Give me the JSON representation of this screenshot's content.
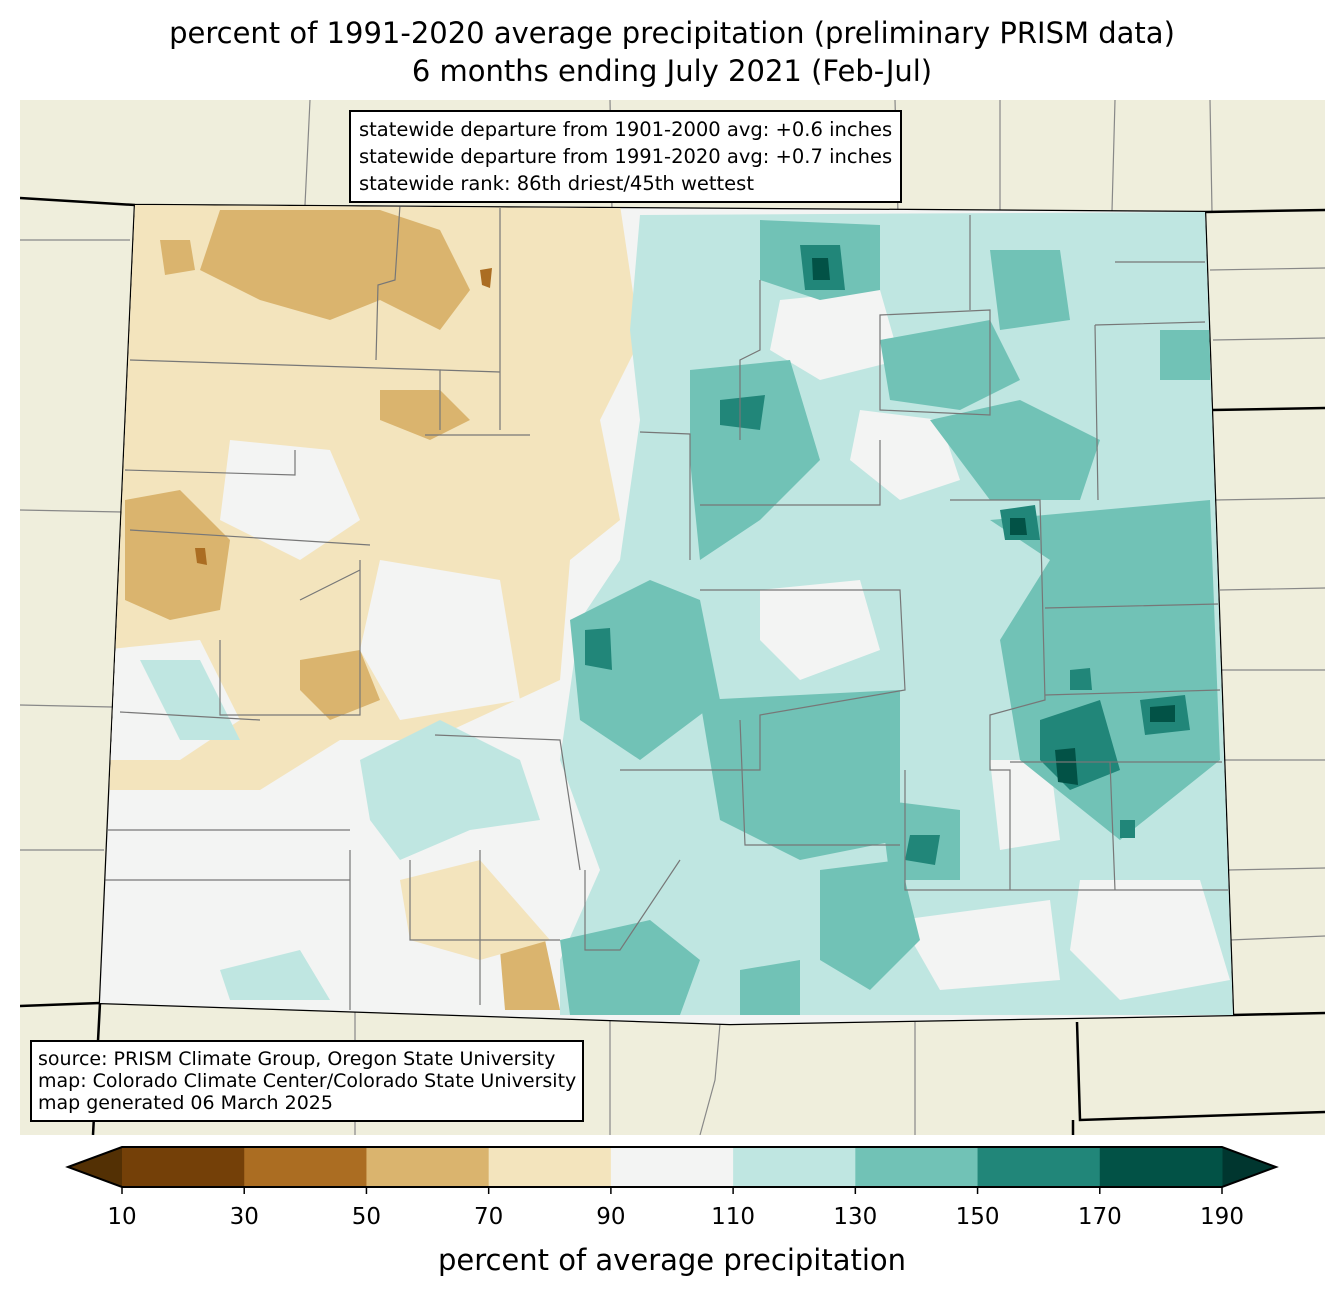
{
  "title": {
    "line1": "percent of 1991-2020 average precipitation (preliminary PRISM data)",
    "line2": "6 months ending July 2021 (Feb-Jul)"
  },
  "stats_box": {
    "line1": "statewide departure from 1901-2000 avg: +0.6 inches",
    "line2": "statewide departure from 1991-2020 avg: +0.7 inches",
    "line3": "statewide rank: 86th driest/45th wettest"
  },
  "source_box": {
    "line1": "source: PRISM Climate Group, Oregon State University",
    "line2": "map: Colorado Climate Center/Colorado State University",
    "line3": "map generated 06 March 2025"
  },
  "colorbar": {
    "label": "percent of average precipitation",
    "ticks": [
      "10",
      "30",
      "50",
      "70",
      "90",
      "110",
      "130",
      "150",
      "170",
      "190"
    ],
    "colors": [
      "#744008",
      "#ab6d22",
      "#dab46e",
      "#f3e4bd",
      "#f3f4f3",
      "#bfe6e1",
      "#71c2b6",
      "#218679",
      "#025246"
    ],
    "under_color": "#533004",
    "over_color": "#00362f"
  },
  "colors": {
    "background_land": "#efeedc"
  }
}
